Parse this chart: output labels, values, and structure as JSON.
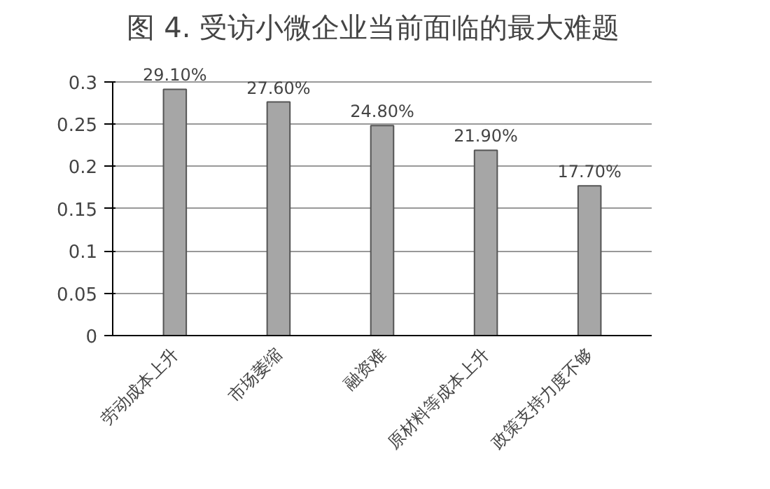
{
  "chart_data": {
    "type": "bar",
    "title": "图 4.   受访小微企业当前面临的最大难题",
    "categories": [
      "劳动成本上升",
      "市场萎缩",
      "融资难",
      "原材料等成本上升",
      "政策支持力度不够"
    ],
    "values": [
      0.291,
      0.276,
      0.248,
      0.219,
      0.177
    ],
    "value_labels": [
      "29.10%",
      "27.60%",
      "24.80%",
      "21.90%",
      "17.70%"
    ],
    "color": "#a6a6a6",
    "ylim": [
      0,
      0.3
    ],
    "yticks": [
      0,
      0.05,
      0.1,
      0.15,
      0.2,
      0.25,
      0.3
    ],
    "grid": "y"
  }
}
